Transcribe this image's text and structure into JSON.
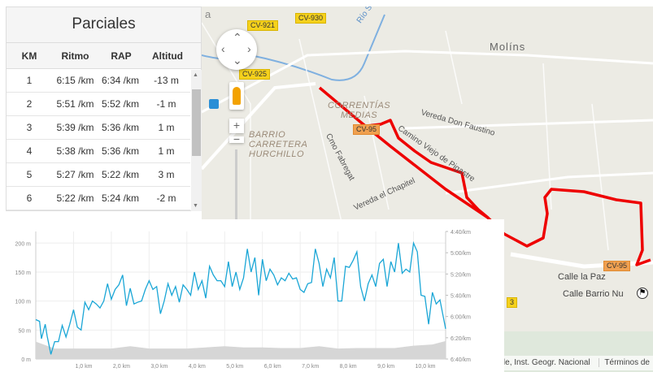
{
  "table": {
    "title": "Parciales",
    "columns": [
      "KM",
      "Ritmo",
      "RAP",
      "Altitud"
    ],
    "rows": [
      [
        "1",
        "6:15 /km",
        "6:34 /km",
        "-13 m"
      ],
      [
        "2",
        "5:51 /km",
        "5:52 /km",
        "-1 m"
      ],
      [
        "3",
        "5:39 /km",
        "5:36 /km",
        "1 m"
      ],
      [
        "4",
        "5:38 /km",
        "5:36 /km",
        "1 m"
      ],
      [
        "5",
        "5:27 /km",
        "5:22 /km",
        "3 m"
      ],
      [
        "6",
        "5:22 /km",
        "5:24 /km",
        "-2 m"
      ]
    ]
  },
  "map": {
    "labels": {
      "a": "a",
      "rio": "Río S",
      "molins": "Molíns",
      "vereda_don_faustino": "Vereda Don Faustino",
      "camino_viejo": "Camino Viejo de Pigastre",
      "cmo_fabregat": "Cmo Fabregat",
      "vereda_chapitel": "Vereda el Chapitel",
      "calle_paz": "Calle la Paz",
      "calle_barrio": "Calle Barrio Nu",
      "road_3": "3"
    },
    "districts": {
      "correntias": "CORRENTÍAS\nMEDIAS",
      "barrio": "BARRIO\nCARRETERA\nHURCHILLO"
    },
    "shields": {
      "cv921": "CV-921",
      "cv930": "CV-930",
      "cv925": "CV-925",
      "cv95a": "CV-95",
      "cv95b": "CV-95"
    },
    "attribution": "ogle, Inst. Geogr. Nacional",
    "terms": "Términos de",
    "route_color": "#ee0000"
  },
  "chart_data": {
    "type": "area+line",
    "left_axis": {
      "ticks": [
        "0 m",
        "50 m",
        "100 m",
        "150 m",
        "200 m"
      ],
      "range": [
        0,
        220
      ]
    },
    "right_axis": {
      "ticks": [
        "4:40/km",
        "5:00/km",
        "5:20/km",
        "5:40/km",
        "6:00/km",
        "6:20/km",
        "6:40/km"
      ],
      "range": [
        "6:40",
        "4:40"
      ]
    },
    "x_axis": {
      "ticks": [
        "1,0 km",
        "2,0 km",
        "3,0 km",
        "4,0 km",
        "5,0 km",
        "6,0 km",
        "7,0 km",
        "8,0 km",
        "9,0 km",
        "10,0 km"
      ],
      "range": [
        0,
        10.85
      ]
    },
    "series": [
      {
        "name": "altitude",
        "color": "#d6d6d6",
        "unit": "m",
        "x": [
          0,
          0.5,
          1,
          1.5,
          2,
          2.5,
          3,
          3.5,
          4,
          4.5,
          5,
          5.5,
          6,
          6.5,
          7,
          7.5,
          8,
          8.5,
          9,
          9.5,
          10,
          10.5,
          10.85
        ],
        "values": [
          30,
          18,
          18,
          18,
          18,
          22,
          18,
          18,
          18,
          20,
          22,
          20,
          20,
          19,
          19,
          22,
          18,
          19,
          19,
          19,
          23,
          25,
          31
        ]
      },
      {
        "name": "pace",
        "color": "#1aa6d6",
        "unit": "left-axis scale (m equivalent)",
        "x": [
          0,
          0.1,
          0.15,
          0.25,
          0.3,
          0.4,
          0.5,
          0.6,
          0.7,
          0.8,
          0.9,
          1.0,
          1.1,
          1.2,
          1.3,
          1.4,
          1.5,
          1.6,
          1.7,
          1.8,
          1.9,
          2.0,
          2.1,
          2.2,
          2.3,
          2.4,
          2.5,
          2.6,
          2.7,
          2.8,
          2.9,
          3.0,
          3.1,
          3.2,
          3.3,
          3.4,
          3.5,
          3.6,
          3.7,
          3.8,
          3.9,
          4.0,
          4.1,
          4.2,
          4.3,
          4.4,
          4.5,
          4.6,
          4.7,
          4.8,
          4.9,
          5.0,
          5.1,
          5.2,
          5.3,
          5.4,
          5.5,
          5.6,
          5.7,
          5.8,
          5.9,
          6.0,
          6.1,
          6.2,
          6.3,
          6.4,
          6.5,
          6.6,
          6.7,
          6.8,
          6.9,
          7.0,
          7.1,
          7.2,
          7.3,
          7.4,
          7.5,
          7.6,
          7.7,
          7.8,
          7.9,
          8.0,
          8.1,
          8.2,
          8.3,
          8.4,
          8.5,
          8.6,
          8.7,
          8.8,
          8.9,
          9.0,
          9.1,
          9.2,
          9.3,
          9.4,
          9.5,
          9.6,
          9.7,
          9.8,
          9.9,
          10.0,
          10.1,
          10.2,
          10.3,
          10.4,
          10.5,
          10.6,
          10.7,
          10.85
        ],
        "values": [
          68,
          65,
          35,
          60,
          40,
          8,
          30,
          30,
          58,
          38,
          60,
          85,
          55,
          50,
          98,
          85,
          100,
          95,
          88,
          100,
          130,
          103,
          120,
          128,
          145,
          92,
          122,
          95,
          98,
          100,
          120,
          135,
          120,
          125,
          78,
          100,
          130,
          110,
          125,
          98,
          128,
          120,
          110,
          150,
          120,
          135,
          105,
          160,
          145,
          135,
          135,
          125,
          168,
          125,
          150,
          120,
          140,
          190,
          150,
          175,
          110,
          172,
          135,
          155,
          145,
          128,
          140,
          135,
          148,
          138,
          140,
          120,
          115,
          130,
          132,
          190,
          165,
          125,
          155,
          140,
          175,
          100,
          100,
          160,
          158,
          170,
          185,
          125,
          100,
          130,
          145,
          125,
          165,
          172,
          125,
          168,
          150,
          200,
          148,
          155,
          150,
          200,
          185,
          110,
          108,
          60,
          115,
          95,
          102,
          52
        ]
      }
    ]
  }
}
